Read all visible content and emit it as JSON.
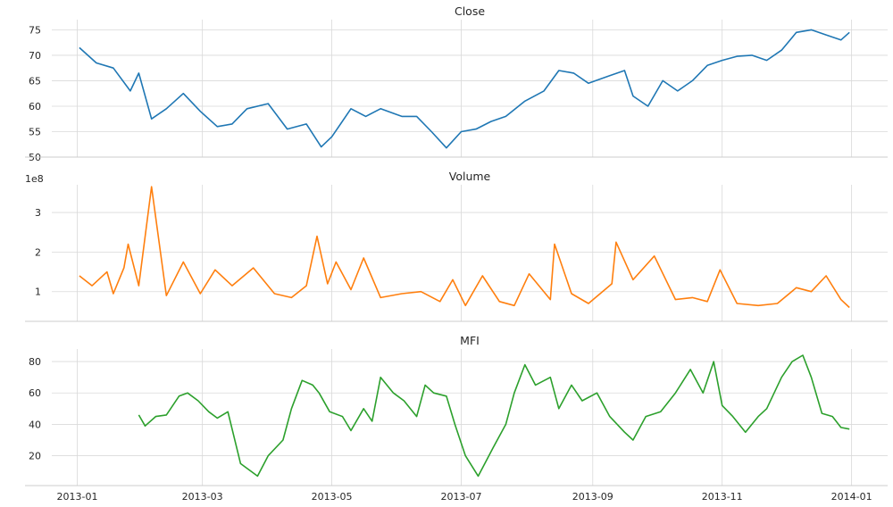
{
  "chart_data": [
    {
      "type": "line",
      "title": "Close",
      "color": "#1f77b4",
      "ylim": [
        50,
        77
      ],
      "yticks": [
        50,
        55,
        60,
        65,
        70,
        75
      ],
      "ytick_labels": [
        "50",
        "55",
        "60",
        "65",
        "70",
        "75"
      ],
      "multiplier_label": "",
      "grid": true,
      "x": [
        "2013-01-02",
        "2013-01-10",
        "2013-01-18",
        "2013-01-26",
        "2013-01-30",
        "2013-02-05",
        "2013-02-12",
        "2013-02-20",
        "2013-02-28",
        "2013-03-08",
        "2013-03-15",
        "2013-03-22",
        "2013-04-01",
        "2013-04-10",
        "2013-04-19",
        "2013-04-26",
        "2013-05-01",
        "2013-05-10",
        "2013-05-17",
        "2013-05-24",
        "2013-06-03",
        "2013-06-10",
        "2013-06-17",
        "2013-06-24",
        "2013-07-01",
        "2013-07-08",
        "2013-07-15",
        "2013-07-22",
        "2013-07-31",
        "2013-08-09",
        "2013-08-16",
        "2013-08-23",
        "2013-08-30",
        "2013-09-09",
        "2013-09-16",
        "2013-09-20",
        "2013-09-27",
        "2013-10-04",
        "2013-10-11",
        "2013-10-18",
        "2013-10-25",
        "2013-11-01",
        "2013-11-08",
        "2013-11-15",
        "2013-11-22",
        "2013-11-29",
        "2013-12-06",
        "2013-12-13",
        "2013-12-20",
        "2013-12-27",
        "2013-12-31"
      ],
      "y": [
        71.5,
        68.5,
        67.5,
        63,
        66.5,
        57.5,
        59.5,
        62.5,
        59,
        56,
        56.5,
        59.5,
        60.5,
        55.5,
        56.5,
        52,
        54,
        59.5,
        58,
        59.5,
        58,
        58,
        55,
        51.8,
        55,
        55.5,
        57,
        58,
        61,
        63,
        67,
        66.5,
        64.5,
        66,
        67,
        62,
        60,
        65,
        63,
        65,
        68,
        69,
        69.8,
        70,
        69,
        71,
        74.5,
        75,
        74,
        73,
        74.5
      ]
    },
    {
      "type": "line",
      "title": "Volume",
      "color": "#ff7f0e",
      "ylim": [
        25000000,
        370000000
      ],
      "yticks": [
        100000000,
        200000000,
        300000000
      ],
      "ytick_labels": [
        "1",
        "2",
        "3"
      ],
      "multiplier_label": "1e8",
      "grid": true,
      "x": [
        "2013-01-02",
        "2013-01-08",
        "2013-01-15",
        "2013-01-18",
        "2013-01-23",
        "2013-01-25",
        "2013-01-30",
        "2013-02-05",
        "2013-02-12",
        "2013-02-20",
        "2013-02-28",
        "2013-03-07",
        "2013-03-15",
        "2013-03-25",
        "2013-04-04",
        "2013-04-12",
        "2013-04-19",
        "2013-04-24",
        "2013-04-29",
        "2013-05-03",
        "2013-05-10",
        "2013-05-16",
        "2013-05-24",
        "2013-06-03",
        "2013-06-12",
        "2013-06-21",
        "2013-06-27",
        "2013-07-03",
        "2013-07-11",
        "2013-07-19",
        "2013-07-26",
        "2013-08-02",
        "2013-08-12",
        "2013-08-14",
        "2013-08-22",
        "2013-08-30",
        "2013-09-10",
        "2013-09-12",
        "2013-09-20",
        "2013-09-30",
        "2013-10-10",
        "2013-10-18",
        "2013-10-25",
        "2013-10-31",
        "2013-11-08",
        "2013-11-18",
        "2013-11-27",
        "2013-12-06",
        "2013-12-13",
        "2013-12-20",
        "2013-12-27",
        "2013-12-31"
      ],
      "y": [
        140000000,
        115000000,
        150000000,
        95000000,
        160000000,
        220000000,
        115000000,
        365000000,
        90000000,
        175000000,
        95000000,
        155000000,
        115000000,
        160000000,
        95000000,
        85000000,
        115000000,
        240000000,
        120000000,
        175000000,
        105000000,
        185000000,
        85000000,
        95000000,
        100000000,
        75000000,
        130000000,
        65000000,
        140000000,
        75000000,
        65000000,
        145000000,
        80000000,
        220000000,
        95000000,
        70000000,
        120000000,
        225000000,
        130000000,
        190000000,
        80000000,
        85000000,
        75000000,
        155000000,
        70000000,
        65000000,
        70000000,
        110000000,
        100000000,
        140000000,
        80000000,
        60000000
      ]
    },
    {
      "type": "line",
      "title": "MFI",
      "color": "#2ca02c",
      "ylim": [
        1,
        88
      ],
      "yticks": [
        20,
        40,
        60,
        80
      ],
      "ytick_labels": [
        "20",
        "40",
        "60",
        "80"
      ],
      "multiplier_label": "",
      "grid": true,
      "x": [
        "2013-01-30",
        "2013-02-02",
        "2013-02-07",
        "2013-02-12",
        "2013-02-18",
        "2013-02-22",
        "2013-02-27",
        "2013-03-04",
        "2013-03-08",
        "2013-03-13",
        "2013-03-19",
        "2013-03-27",
        "2013-04-01",
        "2013-04-08",
        "2013-04-12",
        "2013-04-17",
        "2013-04-22",
        "2013-04-25",
        "2013-04-30",
        "2013-05-06",
        "2013-05-10",
        "2013-05-16",
        "2013-05-20",
        "2013-05-24",
        "2013-05-30",
        "2013-06-04",
        "2013-06-10",
        "2013-06-14",
        "2013-06-18",
        "2013-06-24",
        "2013-06-28",
        "2013-07-03",
        "2013-07-09",
        "2013-07-16",
        "2013-07-22",
        "2013-07-26",
        "2013-07-31",
        "2013-08-05",
        "2013-08-12",
        "2013-08-16",
        "2013-08-22",
        "2013-08-27",
        "2013-09-03",
        "2013-09-09",
        "2013-09-16",
        "2013-09-20",
        "2013-09-26",
        "2013-10-03",
        "2013-10-10",
        "2013-10-17",
        "2013-10-23",
        "2013-10-28",
        "2013-11-01",
        "2013-11-06",
        "2013-11-12",
        "2013-11-18",
        "2013-11-22",
        "2013-11-29",
        "2013-12-04",
        "2013-12-09",
        "2013-12-13",
        "2013-12-18",
        "2013-12-23",
        "2013-12-27",
        "2013-12-31"
      ],
      "y": [
        46,
        39,
        45,
        46,
        58,
        60,
        55,
        48,
        44,
        48,
        15,
        7,
        20,
        30,
        50,
        68,
        65,
        60,
        48,
        45,
        36,
        50,
        42,
        70,
        60,
        55,
        45,
        65,
        60,
        58,
        40,
        20,
        7,
        25,
        40,
        60,
        78,
        65,
        70,
        50,
        65,
        55,
        60,
        45,
        35,
        30,
        45,
        48,
        60,
        75,
        60,
        80,
        52,
        45,
        35,
        45,
        50,
        70,
        80,
        84,
        70,
        47,
        45,
        38,
        37
      ]
    }
  ],
  "x_axis": {
    "ticks": [
      "2013-01-01",
      "2013-03-01",
      "2013-05-01",
      "2013-07-01",
      "2013-09-01",
      "2013-11-01",
      "2014-01-01"
    ],
    "tick_labels": [
      "2013-01",
      "2013-03",
      "2013-05",
      "2013-07",
      "2013-09",
      "2013-11",
      "2014-01"
    ],
    "range": [
      "2012-12-20",
      "2014-01-18"
    ]
  }
}
